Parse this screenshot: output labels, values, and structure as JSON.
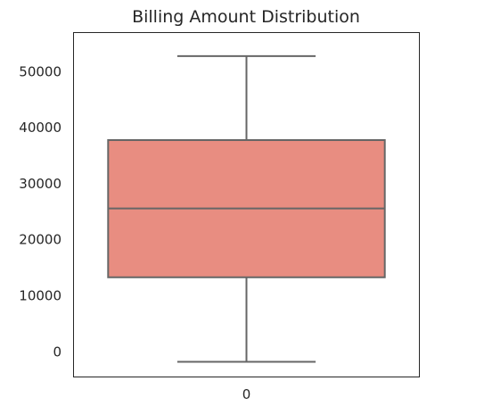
{
  "chart_data": {
    "type": "box",
    "title": "Billing Amount Distribution",
    "xlabel": "",
    "ylabel": "",
    "categories": [
      "0"
    ],
    "ylim": [
      -4500,
      57000
    ],
    "yticks": [
      0,
      10000,
      20000,
      30000,
      40000,
      50000
    ],
    "grid": false,
    "boxes": [
      {
        "category": "0",
        "whisker_low": -1800,
        "q1": 13300,
        "median": 25600,
        "q3": 37800,
        "whisker_high": 52800
      }
    ],
    "colors": {
      "box_fill": "#e88d81",
      "line": "#666666",
      "frame": "#262626",
      "text": "#262626"
    }
  }
}
